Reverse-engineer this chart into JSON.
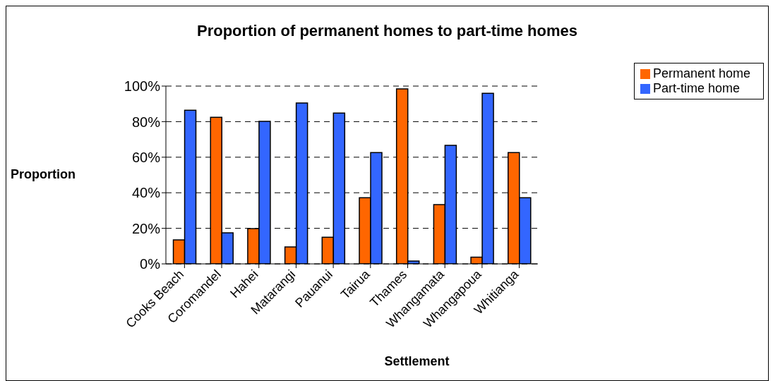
{
  "chart_data": {
    "type": "bar",
    "title": "Proportion of permanent homes to part-time homes",
    "xlabel": "Settlement",
    "ylabel": "Proportion",
    "categories": [
      "Cooks Beach",
      "Coromandel",
      "Hahei",
      "Matarangi",
      "Pauanui",
      "Tairua",
      "Thames",
      "Whangamata",
      "Whangapoua",
      "Whitianga"
    ],
    "series": [
      {
        "name": "Permanent home",
        "color": "#ff6600",
        "values": [
          13.5,
          82.4,
          19.8,
          9.5,
          15,
          37.2,
          98.4,
          33.3,
          3.8,
          62.6
        ]
      },
      {
        "name": "Part-time home",
        "color": "#3366ff",
        "values": [
          86.4,
          17.5,
          80.2,
          90.5,
          84.8,
          62.6,
          1.6,
          66.7,
          95.9,
          37.2
        ]
      }
    ],
    "ylim": [
      0,
      100
    ],
    "yticks": [
      {
        "value": 0,
        "label": "0%"
      },
      {
        "value": 20,
        "label": "20%"
      },
      {
        "value": 40,
        "label": "40%"
      },
      {
        "value": 60,
        "label": "60%"
      },
      {
        "value": 80,
        "label": "80%"
      },
      {
        "value": 100,
        "label": "100%"
      }
    ],
    "grid": "y",
    "legend": "top right"
  }
}
